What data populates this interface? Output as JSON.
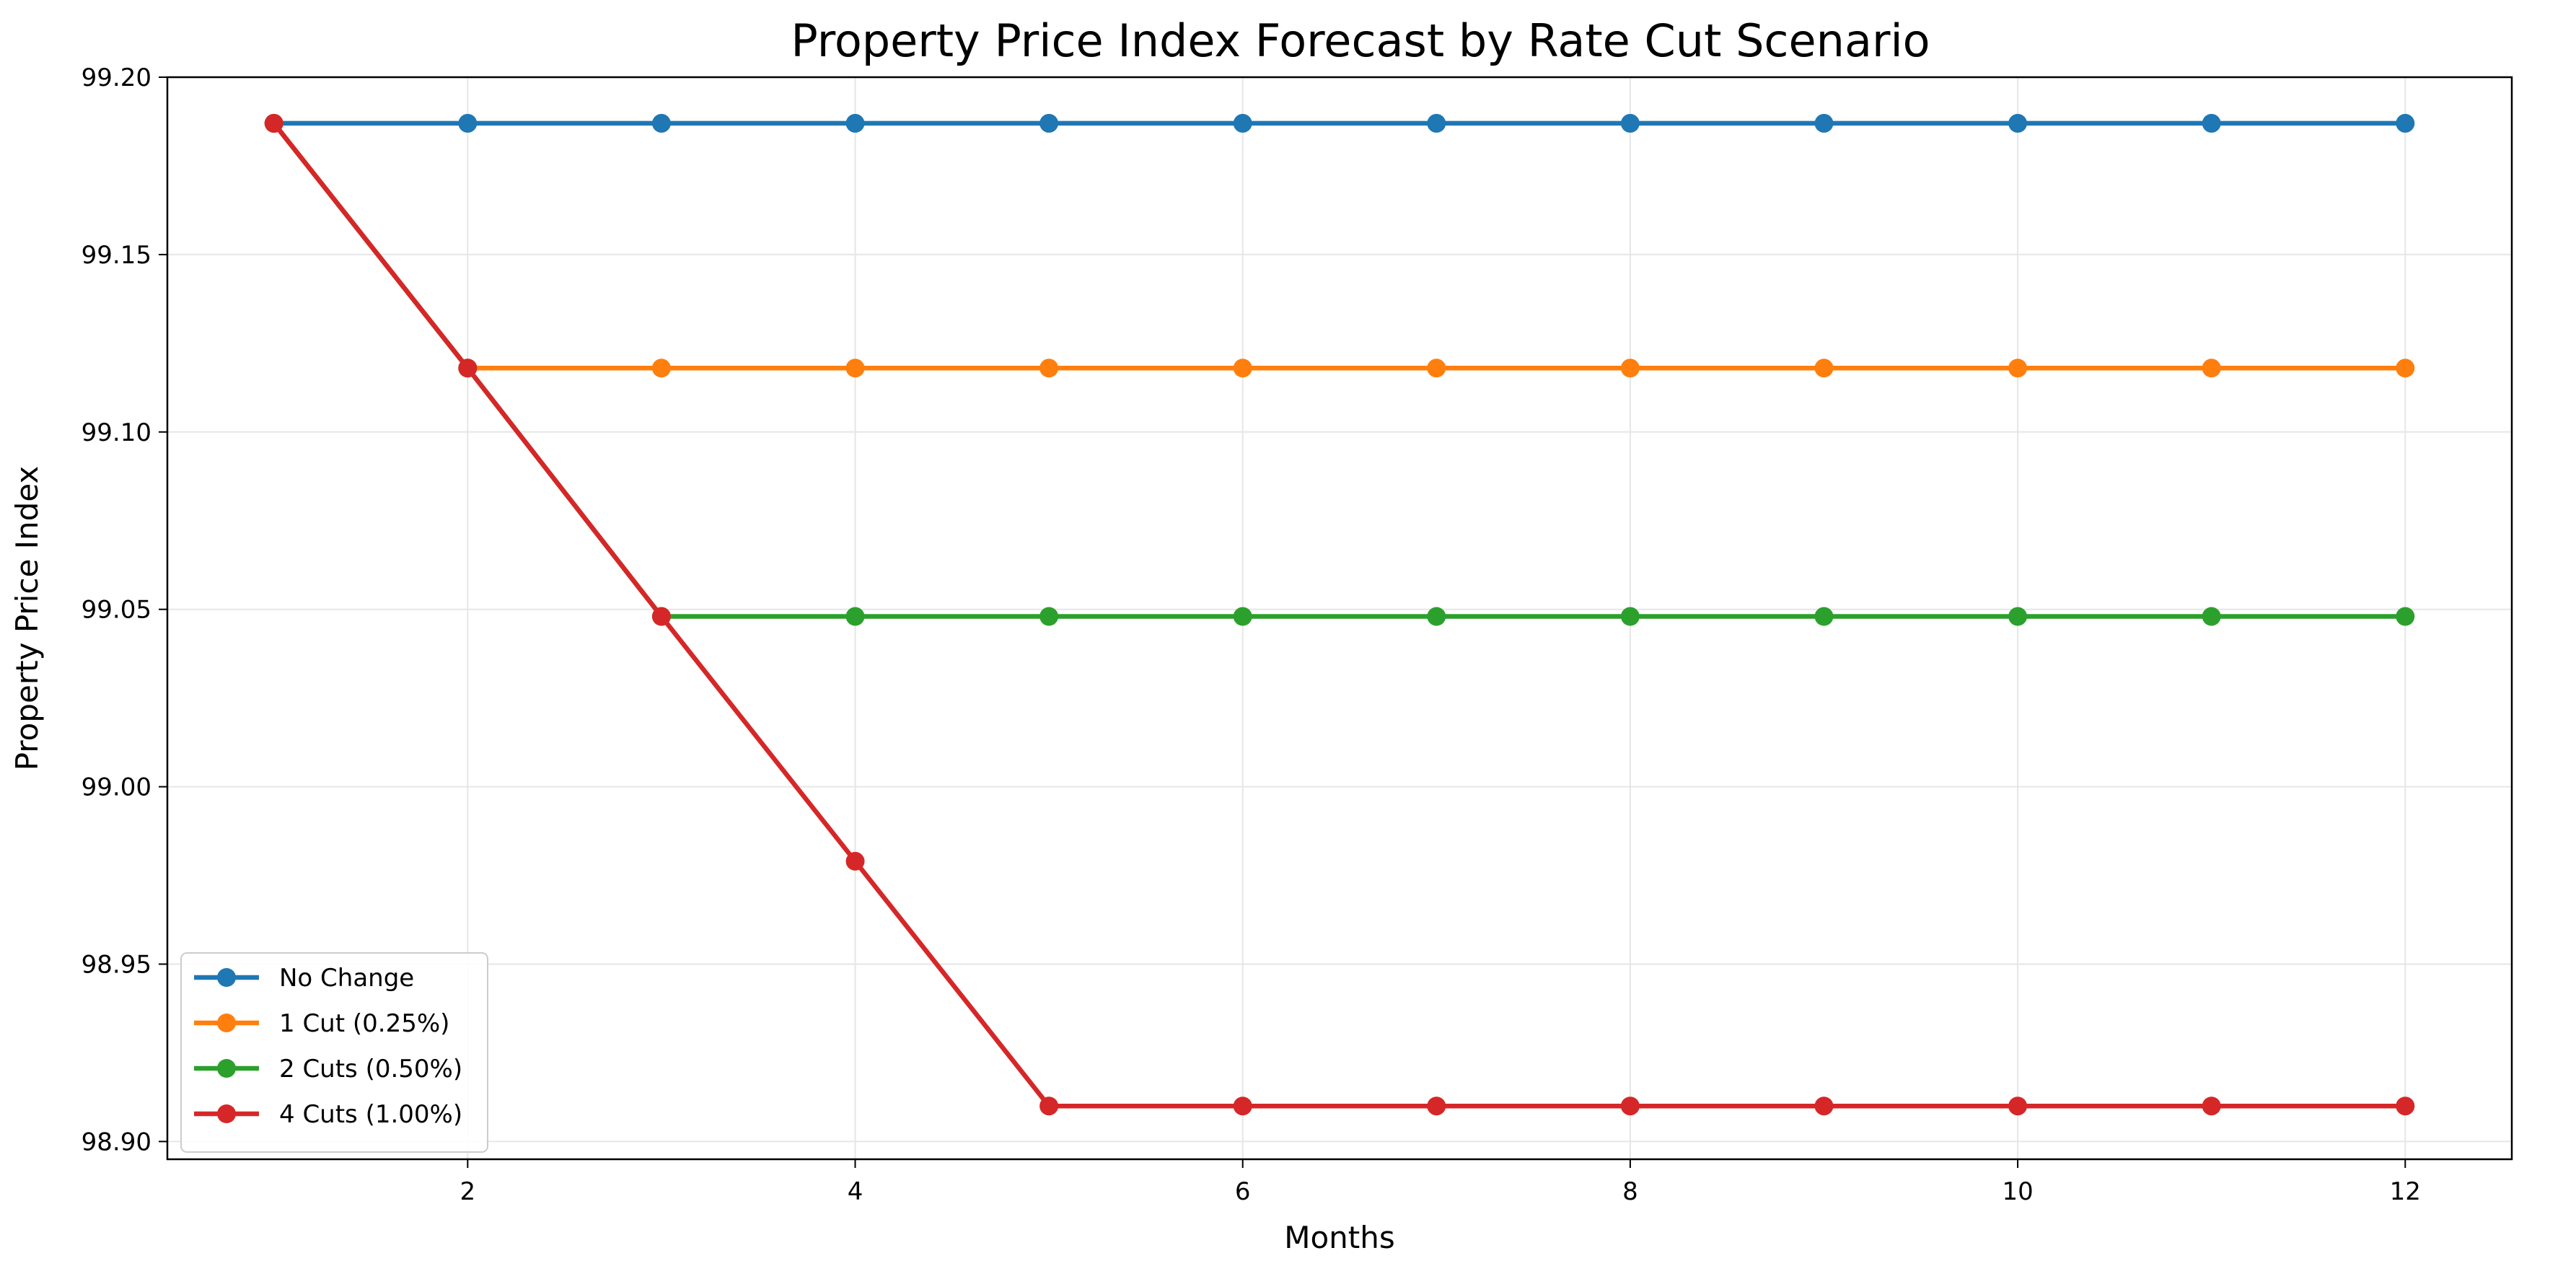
{
  "chart_data": {
    "type": "line",
    "title": "Property Price Index Forecast by Rate Cut Scenario",
    "xlabel": "Months",
    "ylabel": "Property Price Index",
    "x": [
      1,
      2,
      3,
      4,
      5,
      6,
      7,
      8,
      9,
      10,
      11,
      12
    ],
    "xlim": [
      0.45,
      12.55
    ],
    "ylim": [
      98.895,
      99.2
    ],
    "xticks": [
      2,
      4,
      6,
      8,
      10,
      12
    ],
    "yticks": [
      98.9,
      98.95,
      99.0,
      99.05,
      99.1,
      99.15,
      99.2
    ],
    "ytick_labels": [
      "98.90",
      "98.95",
      "99.00",
      "99.05",
      "99.10",
      "99.15",
      "99.20"
    ],
    "grid": true,
    "legend_position": "lower-left",
    "series": [
      {
        "name": "No Change",
        "color": "#1f77b4",
        "values": [
          99.187,
          99.187,
          99.187,
          99.187,
          99.187,
          99.187,
          99.187,
          99.187,
          99.187,
          99.187,
          99.187,
          99.187
        ]
      },
      {
        "name": "1 Cut (0.25%)",
        "color": "#ff7f0e",
        "values": [
          99.187,
          99.118,
          99.118,
          99.118,
          99.118,
          99.118,
          99.118,
          99.118,
          99.118,
          99.118,
          99.118,
          99.118
        ]
      },
      {
        "name": "2 Cuts (0.50%)",
        "color": "#2ca02c",
        "values": [
          99.187,
          99.118,
          99.048,
          99.048,
          99.048,
          99.048,
          99.048,
          99.048,
          99.048,
          99.048,
          99.048,
          99.048
        ]
      },
      {
        "name": "4 Cuts (1.00%)",
        "color": "#d62728",
        "values": [
          99.187,
          99.118,
          99.048,
          98.979,
          98.91,
          98.91,
          98.91,
          98.91,
          98.91,
          98.91,
          98.91,
          98.91
        ]
      }
    ]
  }
}
